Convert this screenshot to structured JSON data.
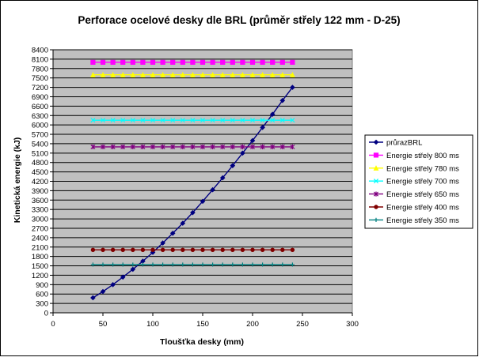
{
  "chart_data": {
    "type": "line",
    "title": "Perforace ocelové desky dle BRL (průměr střely 122 mm - D-25)",
    "xlabel": "Tloušťka desky (mm)",
    "ylabel": "Kinetická energie (kJ)",
    "xlim": [
      0,
      300
    ],
    "ylim": [
      0,
      8400
    ],
    "xticks": [
      0,
      50,
      100,
      150,
      200,
      250,
      300
    ],
    "yticks": [
      0,
      300,
      600,
      900,
      1200,
      1500,
      1800,
      2100,
      2400,
      2700,
      3000,
      3300,
      3600,
      3900,
      4200,
      4500,
      4800,
      5100,
      5400,
      5700,
      6000,
      6300,
      6600,
      6900,
      7200,
      7500,
      7800,
      8100,
      8400
    ],
    "grid": true,
    "legend_position": "right",
    "series": [
      {
        "name": "průrazBRL",
        "color": "#000080",
        "marker": "diamond",
        "x": [
          40,
          50,
          60,
          70,
          80,
          90,
          100,
          110,
          120,
          130,
          140,
          150,
          160,
          170,
          180,
          190,
          200,
          210,
          220,
          230,
          240
        ],
        "y": [
          480,
          680,
          900,
          1140,
          1390,
          1650,
          1930,
          2230,
          2540,
          2860,
          3200,
          3560,
          3930,
          4310,
          4700,
          5100,
          5500,
          5920,
          6340,
          6780,
          7200
        ]
      },
      {
        "name": "Energie střely 800 ms",
        "color": "#ff00ff",
        "marker": "square",
        "x": [
          40,
          50,
          60,
          70,
          80,
          90,
          100,
          110,
          120,
          130,
          140,
          150,
          160,
          170,
          180,
          190,
          200,
          210,
          220,
          230,
          240
        ],
        "y": [
          8000,
          8000,
          8000,
          8000,
          8000,
          8000,
          8000,
          8000,
          8000,
          8000,
          8000,
          8000,
          8000,
          8000,
          8000,
          8000,
          8000,
          8000,
          8000,
          8000,
          8000
        ]
      },
      {
        "name": "Energie střely 780 ms",
        "color": "#ffff00",
        "marker": "triangle",
        "x": [
          40,
          50,
          60,
          70,
          80,
          90,
          100,
          110,
          120,
          130,
          140,
          150,
          160,
          170,
          180,
          190,
          200,
          210,
          220,
          230,
          240
        ],
        "y": [
          7600,
          7600,
          7600,
          7600,
          7600,
          7600,
          7600,
          7600,
          7600,
          7600,
          7600,
          7600,
          7600,
          7600,
          7600,
          7600,
          7600,
          7600,
          7600,
          7600,
          7600
        ]
      },
      {
        "name": "Energie střely 700 ms",
        "color": "#00ffff",
        "marker": "x",
        "x": [
          40,
          50,
          60,
          70,
          80,
          90,
          100,
          110,
          120,
          130,
          140,
          150,
          160,
          170,
          180,
          190,
          200,
          210,
          220,
          230,
          240
        ],
        "y": [
          6150,
          6150,
          6150,
          6150,
          6150,
          6150,
          6150,
          6150,
          6150,
          6150,
          6150,
          6150,
          6150,
          6150,
          6150,
          6150,
          6150,
          6150,
          6150,
          6150,
          6150
        ]
      },
      {
        "name": "Energie střely 650 ms",
        "color": "#800080",
        "marker": "star",
        "x": [
          40,
          50,
          60,
          70,
          80,
          90,
          100,
          110,
          120,
          130,
          140,
          150,
          160,
          170,
          180,
          190,
          200,
          210,
          220,
          230,
          240
        ],
        "y": [
          5300,
          5300,
          5300,
          5300,
          5300,
          5300,
          5300,
          5300,
          5300,
          5300,
          5300,
          5300,
          5300,
          5300,
          5300,
          5300,
          5300,
          5300,
          5300,
          5300,
          5300
        ]
      },
      {
        "name": "Energie střely 400 ms",
        "color": "#800000",
        "marker": "circle",
        "x": [
          40,
          50,
          60,
          70,
          80,
          90,
          100,
          110,
          120,
          130,
          140,
          150,
          160,
          170,
          180,
          190,
          200,
          210,
          220,
          230,
          240
        ],
        "y": [
          2010,
          2010,
          2010,
          2010,
          2010,
          2010,
          2010,
          2010,
          2010,
          2010,
          2010,
          2010,
          2010,
          2010,
          2010,
          2010,
          2010,
          2010,
          2010,
          2010,
          2010
        ]
      },
      {
        "name": "Energie střely 350 ms",
        "color": "#008080",
        "marker": "plus",
        "x": [
          40,
          50,
          60,
          70,
          80,
          90,
          100,
          110,
          120,
          130,
          140,
          150,
          160,
          170,
          180,
          190,
          200,
          210,
          220,
          230,
          240
        ],
        "y": [
          1540,
          1540,
          1540,
          1540,
          1540,
          1540,
          1540,
          1540,
          1540,
          1540,
          1540,
          1540,
          1540,
          1540,
          1540,
          1540,
          1540,
          1540,
          1540,
          1540,
          1540
        ]
      }
    ]
  },
  "colors": {
    "plot_background": "#c0c0c0",
    "chart_background": "#ffffff",
    "gridline": "#000000"
  }
}
